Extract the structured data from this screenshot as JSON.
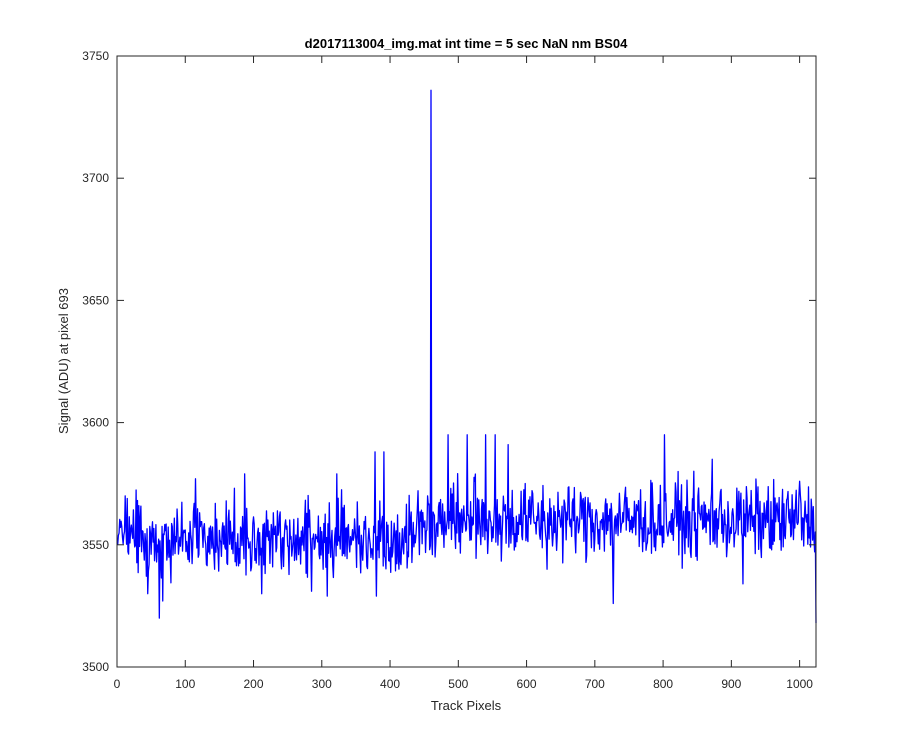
{
  "window": {
    "background": "#ffffff"
  },
  "chart_data": {
    "type": "line",
    "title": "d2017113004_img.mat int time = 5 sec  NaN nm BS04",
    "xlabel": "Track Pixels",
    "ylabel": "Signal (ADU) at pixel 693",
    "xlim": [
      0,
      1024
    ],
    "ylim": [
      3500,
      3750
    ],
    "xticks": [
      0,
      100,
      200,
      300,
      400,
      500,
      600,
      700,
      800,
      900,
      1000
    ],
    "yticks": [
      3500,
      3550,
      3600,
      3650,
      3700,
      3750
    ],
    "grid": false,
    "legend": "none",
    "line_color": "#0000ff",
    "noise_baseline": {
      "description": "noisy trace, roughly uniform noise",
      "segments": [
        {
          "x_start": 0,
          "x_end": 440,
          "mean": 3553,
          "half_range": 14
        },
        {
          "x_start": 440,
          "x_end": 1024,
          "mean": 3560,
          "half_range": 14
        }
      ]
    },
    "series": [
      {
        "color": "#0000ff",
        "notable_points": [
          {
            "x": 1,
            "y": 3550
          },
          {
            "x": 12,
            "y": 3570
          },
          {
            "x": 45,
            "y": 3530
          },
          {
            "x": 62,
            "y": 3520
          },
          {
            "x": 67,
            "y": 3527
          },
          {
            "x": 115,
            "y": 3577
          },
          {
            "x": 187,
            "y": 3579
          },
          {
            "x": 212,
            "y": 3530
          },
          {
            "x": 285,
            "y": 3531
          },
          {
            "x": 302,
            "y": 3540
          },
          {
            "x": 308,
            "y": 3529
          },
          {
            "x": 322,
            "y": 3579
          },
          {
            "x": 378,
            "y": 3588
          },
          {
            "x": 380,
            "y": 3529
          },
          {
            "x": 391,
            "y": 3588
          },
          {
            "x": 455,
            "y": 3570
          },
          {
            "x": 458,
            "y": 3548
          },
          {
            "x": 460,
            "y": 3736
          },
          {
            "x": 462,
            "y": 3546
          },
          {
            "x": 466,
            "y": 3545
          },
          {
            "x": 485,
            "y": 3595
          },
          {
            "x": 513,
            "y": 3595
          },
          {
            "x": 540,
            "y": 3595
          },
          {
            "x": 554,
            "y": 3595
          },
          {
            "x": 573,
            "y": 3591
          },
          {
            "x": 630,
            "y": 3540
          },
          {
            "x": 727,
            "y": 3526
          },
          {
            "x": 802,
            "y": 3595
          },
          {
            "x": 872,
            "y": 3585
          },
          {
            "x": 917,
            "y": 3534
          },
          {
            "x": 1000,
            "y": 3576
          },
          {
            "x": 1024,
            "y": 3518
          }
        ]
      }
    ]
  }
}
